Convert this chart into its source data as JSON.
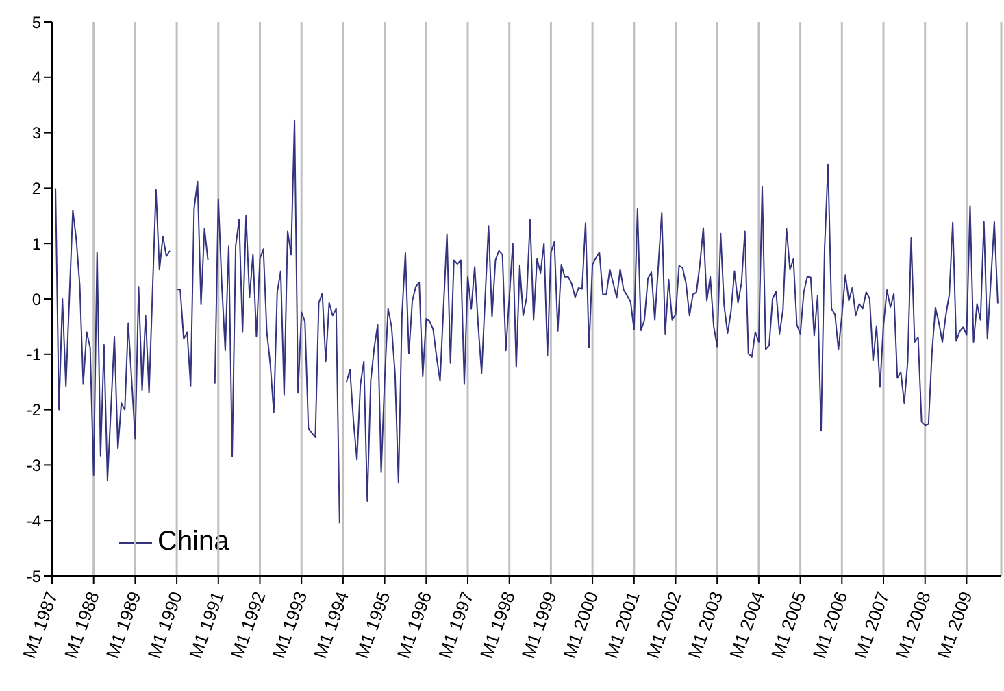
{
  "chart_data": {
    "type": "line",
    "legend": "bottom left",
    "grid": "x",
    "marker": "none",
    "line_style": "solid",
    "ylim": [
      -5,
      5
    ],
    "yticks": [
      -5,
      -4,
      -3,
      -2,
      -1,
      0,
      1,
      2,
      3,
      4,
      5
    ],
    "xlim": [
      "1987-01",
      "2009-11"
    ],
    "xticks": [
      {
        "value": "1987-01",
        "label": "M1 1987"
      },
      {
        "value": "1988-01",
        "label": "M1 1988"
      },
      {
        "value": "1989-01",
        "label": "M1 1989"
      },
      {
        "value": "1990-01",
        "label": "M1 1990"
      },
      {
        "value": "1991-01",
        "label": "M1 1991"
      },
      {
        "value": "1992-01",
        "label": "M1 1992"
      },
      {
        "value": "1993-01",
        "label": "M1 1993"
      },
      {
        "value": "1994-01",
        "label": "M1 1994"
      },
      {
        "value": "1995-01",
        "label": "M1 1995"
      },
      {
        "value": "1996-01",
        "label": "M1 1996"
      },
      {
        "value": "1997-01",
        "label": "M1 1997"
      },
      {
        "value": "1998-01",
        "label": "M1 1998"
      },
      {
        "value": "1999-01",
        "label": "M1 1999"
      },
      {
        "value": "2000-01",
        "label": "M1 2000"
      },
      {
        "value": "2001-01",
        "label": "M1 2001"
      },
      {
        "value": "2002-01",
        "label": "M1 2002"
      },
      {
        "value": "2003-01",
        "label": "M1 2003"
      },
      {
        "value": "2004-01",
        "label": "M1 2004"
      },
      {
        "value": "2005-01",
        "label": "M1 2005"
      },
      {
        "value": "2006-01",
        "label": "M1 2006"
      },
      {
        "value": "2007-01",
        "label": "M1 2007"
      },
      {
        "value": "2008-01",
        "label": "M1 2008"
      },
      {
        "value": "2009-01",
        "label": "M1 2009"
      }
    ],
    "series": [
      {
        "name": "China",
        "color": "#333380",
        "x": [
          "1987-02",
          "1987-03",
          "1987-04",
          "1987-05",
          "1987-07",
          "1987-08",
          "1987-09",
          "1987-10",
          "1987-11",
          "1987-12",
          "1988-01",
          "1988-02",
          "1988-03",
          "1988-04",
          "1988-05",
          "1988-07",
          "1988-08",
          "1988-09",
          "1988-10",
          "1988-11",
          "1989-01",
          "1989-02",
          "1989-03",
          "1989-04",
          "1989-05",
          "1989-07",
          "1989-08",
          "1989-09",
          "1989-10",
          "1989-11",
          "1989-12",
          "1990-01",
          "1990-02",
          "1990-03",
          "1990-04",
          "1990-05",
          "1990-06",
          "1990-07",
          "1990-08",
          "1990-09",
          "1990-10",
          "1990-11",
          "1990-12",
          "1991-01",
          "1991-02",
          "1991-03",
          "1991-04",
          "1991-05",
          "1991-06",
          "1991-07",
          "1991-08",
          "1991-09",
          "1991-10",
          "1991-11",
          "1991-12",
          "1992-01",
          "1992-02",
          "1992-03",
          "1992-04",
          "1992-05",
          "1992-06",
          "1992-07",
          "1992-08",
          "1992-09",
          "1992-10",
          "1992-11",
          "1992-12",
          "1993-01",
          "1993-02",
          "1993-03",
          "1993-05",
          "1993-06",
          "1993-07",
          "1993-08",
          "1993-09",
          "1993-10",
          "1993-11",
          "1993-12",
          "1994-01",
          "1994-02",
          "1994-03",
          "1994-04",
          "1994-05",
          "1994-06",
          "1994-07",
          "1994-08",
          "1994-09",
          "1994-10",
          "1994-11",
          "1994-12",
          "1995-01",
          "1995-02",
          "1995-03",
          "1995-04",
          "1995-05",
          "1995-06",
          "1995-07",
          "1995-08",
          "1995-09",
          "1995-10",
          "1995-11",
          "1995-12",
          "1996-01",
          "1996-02",
          "1996-03",
          "1996-04",
          "1996-05",
          "1996-07",
          "1996-08",
          "1996-09",
          "1996-10",
          "1996-11",
          "1996-12",
          "1997-01",
          "1997-02",
          "1997-03",
          "1997-04",
          "1997-05",
          "1997-07",
          "1997-08",
          "1997-09",
          "1997-10",
          "1997-11",
          "1997-12",
          "1998-02",
          "1998-03",
          "1998-04",
          "1998-05",
          "1998-06",
          "1998-07",
          "1998-08",
          "1998-09",
          "1998-10",
          "1998-11",
          "1998-12",
          "1999-01",
          "1999-02",
          "1999-03",
          "1999-04",
          "1999-05",
          "1999-06",
          "1999-07",
          "1999-08",
          "1999-09",
          "1999-10",
          "1999-11",
          "1999-12",
          "2000-01",
          "2000-02",
          "2000-03",
          "2000-04",
          "2000-05",
          "2000-06",
          "2000-07",
          "2000-08",
          "2000-09",
          "2000-10",
          "2000-11",
          "2000-12",
          "2001-01",
          "2001-02",
          "2001-03",
          "2001-04",
          "2001-05",
          "2001-06",
          "2001-07",
          "2001-09",
          "2001-10",
          "2001-11",
          "2001-12",
          "2002-01",
          "2002-02",
          "2002-03",
          "2002-04",
          "2002-05",
          "2002-06",
          "2002-07",
          "2002-08",
          "2002-09",
          "2002-10",
          "2002-11",
          "2002-12",
          "2003-01",
          "2003-02",
          "2003-03",
          "2003-04",
          "2003-05",
          "2003-06",
          "2003-07",
          "2003-08",
          "2003-09",
          "2003-10",
          "2003-11",
          "2003-12",
          "2004-01",
          "2004-02",
          "2004-03",
          "2004-04",
          "2004-05",
          "2004-06",
          "2004-07",
          "2004-08",
          "2004-09",
          "2004-10",
          "2004-11",
          "2004-12",
          "2005-01",
          "2005-02",
          "2005-03",
          "2005-04",
          "2005-05",
          "2005-06",
          "2005-07",
          "2005-08",
          "2005-09",
          "2005-10",
          "2005-11",
          "2005-12",
          "2006-01",
          "2006-02",
          "2006-03",
          "2006-04",
          "2006-05",
          "2006-06",
          "2006-07",
          "2006-08",
          "2006-09",
          "2006-10",
          "2006-11",
          "2006-12",
          "2007-01",
          "2007-02",
          "2007-03",
          "2007-04",
          "2007-05",
          "2007-06",
          "2007-07",
          "2007-08",
          "2007-09",
          "2007-10",
          "2007-11",
          "2007-12",
          "2008-01",
          "2008-02",
          "2008-03",
          "2008-04",
          "2008-05",
          "2008-06",
          "2008-07",
          "2008-08",
          "2008-09",
          "2008-10",
          "2008-11",
          "2008-12",
          "2009-01",
          "2009-02",
          "2009-03",
          "2009-04",
          "2009-05",
          "2009-06",
          "2009-07",
          "2009-09",
          "2009-10"
        ],
        "values": [
          2.0,
          -2.0,
          0,
          -1.58,
          1.6,
          1.07,
          0.25,
          -1.53,
          -0.6,
          -0.88,
          -3.18,
          0.84,
          -2.83,
          -0.83,
          -3.28,
          -0.68,
          -2.7,
          -1.88,
          -2.0,
          -0.44,
          -2.53,
          0.22,
          -1.65,
          -0.3,
          -1.7,
          1.97,
          0.53,
          1.13,
          0.77,
          0.87,
          null,
          0.17,
          0.17,
          -0.72,
          -0.6,
          -1.57,
          1.63,
          2.12,
          -0.1,
          1.27,
          0.7,
          null,
          -1.53,
          1.8,
          0.25,
          -0.93,
          0.95,
          -2.84,
          0.95,
          1.43,
          -0.6,
          1.5,
          0.03,
          0.8,
          -0.68,
          0.73,
          0.9,
          -0.6,
          -1.18,
          -2.05,
          0.12,
          0.5,
          -1.73,
          1.22,
          0.8,
          3.22,
          -1.7,
          -0.24,
          -0.41,
          -2.34,
          -2.5,
          -0.07,
          0.1,
          -1.13,
          -0.07,
          -0.3,
          -0.18,
          -4.05,
          null,
          -1.5,
          -1.28,
          -2.2,
          -2.9,
          -1.55,
          -1.13,
          -3.65,
          -1.47,
          -0.88,
          -0.47,
          -3.13,
          -1.47,
          -0.18,
          -0.5,
          -1.34,
          -3.32,
          -0.3,
          0.83,
          -0.99,
          -0.03,
          0.22,
          0.3,
          -1.4,
          -0.36,
          -0.4,
          -0.55,
          -1.05,
          -1.48,
          1.17,
          -1.16,
          0.7,
          0.63,
          0.7,
          -1.53,
          0.4,
          -0.18,
          0.58,
          -0.47,
          -1.34,
          1.32,
          -0.32,
          0.7,
          0.87,
          0.8,
          -0.93,
          1.0,
          -1.23,
          0.6,
          -0.3,
          0.03,
          1.43,
          -0.38,
          0.72,
          0.47,
          1.0,
          -1.03,
          0.84,
          1.03,
          -0.58,
          0.62,
          0.4,
          0.4,
          0.27,
          0.03,
          0.2,
          0.18,
          1.37,
          -0.88,
          0.62,
          0.74,
          0.84,
          0.08,
          0.08,
          0.53,
          0.28,
          0.02,
          0.53,
          0.16,
          0.06,
          -0.05,
          -0.55,
          1.62,
          -0.57,
          -0.38,
          0.37,
          0.48,
          -0.38,
          1.56,
          -0.63,
          0.35,
          -0.38,
          -0.28,
          0.6,
          0.56,
          0.28,
          -0.3,
          0.08,
          0.12,
          0.62,
          1.28,
          -0.03,
          0.4,
          -0.5,
          -0.86,
          1.18,
          -0.12,
          -0.62,
          -0.22,
          0.5,
          -0.07,
          0.28,
          1.22,
          -0.99,
          -1.05,
          -0.6,
          -0.78,
          2.02,
          -0.91,
          -0.84,
          0.01,
          0.13,
          -0.63,
          -0.19,
          1.27,
          0.53,
          0.72,
          -0.47,
          -0.63,
          0.12,
          0.4,
          0.39,
          -0.66,
          0.06,
          -2.38,
          0.9,
          2.43,
          -0.18,
          -0.28,
          -0.91,
          -0.3,
          0.43,
          -0.03,
          0.2,
          -0.3,
          -0.09,
          -0.18,
          0.12,
          0.01,
          -1.11,
          -0.49,
          -1.59,
          -0.47,
          0.16,
          -0.15,
          0.09,
          -1.43,
          -1.32,
          -1.88,
          -1.13,
          1.1,
          -0.78,
          -0.69,
          -2.22,
          -2.28,
          -2.26,
          -0.97,
          -0.16,
          -0.43,
          -0.78,
          -0.3,
          0.08,
          1.38,
          -0.76,
          -0.59,
          -0.51,
          -0.65,
          1.68,
          -0.78,
          -0.09,
          -0.38,
          1.39,
          -0.72,
          1.39,
          -0.08
        ]
      }
    ]
  }
}
